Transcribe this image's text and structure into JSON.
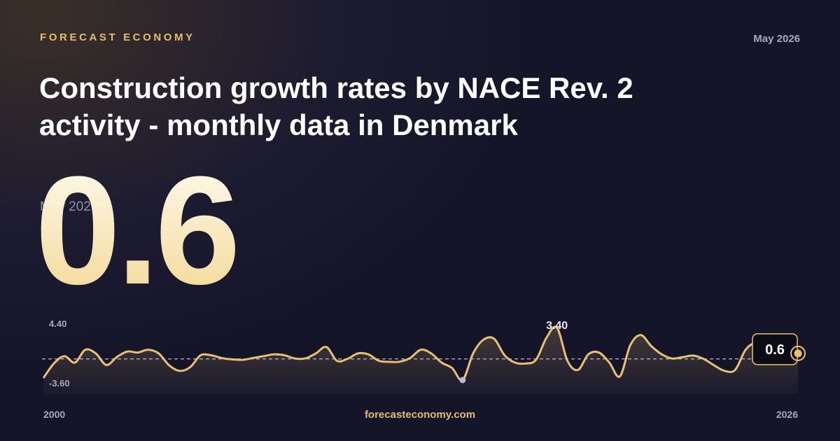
{
  "brand": "FORECAST ECONOMY",
  "date": "May 2026",
  "title": "Construction growth rates by NACE Rev. 2 activity - monthly data in Denmark",
  "site": "forecasteconomy.com",
  "chart_data": {
    "type": "line",
    "color": "#e8c170",
    "values": [
      -2.08,
      -0.5,
      0.3,
      -0.4,
      1.0,
      0.6,
      -0.66,
      0.2,
      0.8,
      0.7,
      1.0,
      0.6,
      -0.7,
      -1.3,
      -0.9,
      0.4,
      0.4,
      0.1,
      -0.05,
      -0.1,
      0.1,
      0.3,
      0.5,
      0.4,
      0.05,
      0.06,
      0.6,
      1.3,
      -0.2,
      0.0,
      0.6,
      0.5,
      -0.2,
      -0.32,
      -0.3,
      0.1,
      1.0,
      0.6,
      -0.4,
      -1.0,
      -2.3,
      0.6,
      2.1,
      2.2,
      0.4,
      -0.4,
      -0.5,
      -0.1,
      2.3,
      3.4,
      -0.2,
      -1.2,
      0.5,
      0.7,
      -0.4,
      -1.9,
      1.5,
      2.6,
      1.4,
      0.5,
      0.05,
      0.2,
      0.36,
      0.0,
      -0.7,
      -1.3,
      -1.2,
      1.0,
      1.8,
      1.6,
      1.3,
      0.9,
      0.6
    ],
    "value_labels": [
      null,
      null,
      null,
      null,
      null,
      null,
      null,
      null,
      null,
      null,
      null,
      null,
      null,
      null,
      null,
      null,
      null,
      null,
      null,
      null,
      null,
      null,
      null,
      null,
      null,
      null,
      null,
      null,
      null,
      null,
      null,
      null,
      null,
      null,
      null,
      null,
      null,
      null,
      null,
      null,
      null,
      null,
      null,
      null,
      null,
      null,
      null,
      null,
      null,
      "3.40",
      null,
      null,
      null,
      null,
      null,
      null,
      null,
      null,
      null,
      null,
      null,
      null,
      null,
      null,
      null,
      null,
      null,
      null,
      null,
      null,
      null,
      null,
      null
    ],
    "xticks": [
      2000,
      2026
    ],
    "ylim": [
      -3.6,
      4.4
    ],
    "yticks": [
      {
        "value": 4.4,
        "label": "4.40"
      },
      {
        "value": -3.6,
        "label": "-3.60"
      }
    ]
  }
}
